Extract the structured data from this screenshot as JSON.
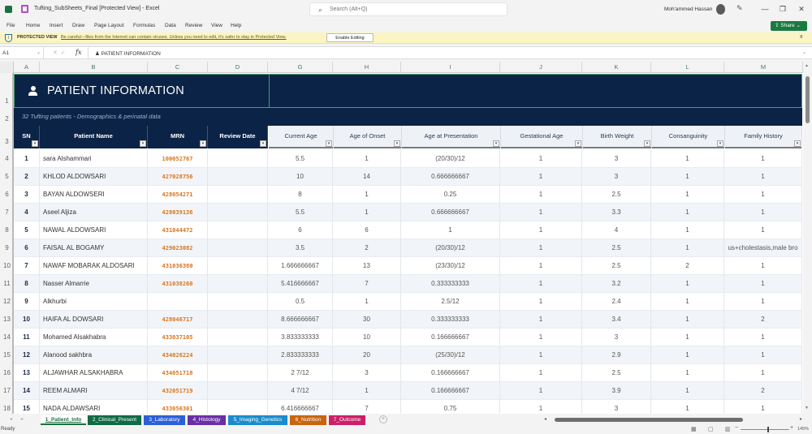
{
  "window": {
    "title": "Tufting_SubSheets_Final  [Protected View]  -  Excel",
    "search_placeholder": "Search (Alt+Q)",
    "user_name": "Moh'ammed Hassan",
    "minimize": "—",
    "restore": "❐",
    "close": "✕"
  },
  "menu": {
    "items": [
      "File",
      "Home",
      "Insert",
      "Draw",
      "Page Layout",
      "Formulas",
      "Data",
      "Review",
      "View",
      "Help"
    ],
    "share_label": "Share"
  },
  "protected_view": {
    "label": "PROTECTED VIEW",
    "message": "Be careful—files from the Internet can contain viruses. Unless you need to edit, it's safer to stay in Protected View.",
    "enable_button": "Enable Editing",
    "close": "x"
  },
  "formula_bar": {
    "cell_ref": "A1",
    "fx": "fx",
    "content": "PATIENT INFORMATION"
  },
  "columns": [
    "A",
    "B",
    "C",
    "D",
    "G",
    "H",
    "I",
    "J",
    "K",
    "L",
    "M"
  ],
  "row_numbers": [
    "1",
    "2",
    "3",
    "4",
    "5",
    "6",
    "7",
    "8",
    "9",
    "10",
    "11",
    "12",
    "13",
    "14",
    "15",
    "16",
    "17",
    "18"
  ],
  "sheet": {
    "title": "PATIENT INFORMATION",
    "subtitle": "32 Tufting patients  -  Demographics & perinatal data",
    "headers": [
      "SN",
      "Patient Name",
      "MRN",
      "Review Date",
      "Current Age",
      "Age of Onset",
      "Age at Presentation",
      "Gestational Age",
      "Birth Weight",
      "Consanguinity",
      "Family History"
    ],
    "rows": [
      {
        "sn": "1",
        "name": "sara Alshammari",
        "mrn": "100052767",
        "review": "",
        "current_age": "5.5",
        "onset": "1",
        "presentation": "(20/30)/12",
        "gest": "1",
        "weight": "3",
        "consang": "1",
        "family": "1"
      },
      {
        "sn": "2",
        "name": "KHLOD ALDOWSARI",
        "mrn": "427028756",
        "review": "",
        "current_age": "10",
        "onset": "14",
        "presentation": "0.666666667",
        "gest": "1",
        "weight": "3",
        "consang": "1",
        "family": "1"
      },
      {
        "sn": "3",
        "name": "BAYAN ALDOWSERI",
        "mrn": "428054271",
        "review": "",
        "current_age": "8",
        "onset": "1",
        "presentation": "0.25",
        "gest": "1",
        "weight": "2.5",
        "consang": "1",
        "family": "1"
      },
      {
        "sn": "4",
        "name": "Aseel Aljiza",
        "mrn": "428039136",
        "review": "",
        "current_age": "5.5",
        "onset": "1",
        "presentation": "0.666666667",
        "gest": "1",
        "weight": "3.3",
        "consang": "1",
        "family": "1"
      },
      {
        "sn": "5",
        "name": "NAWAL ALDOWSARI",
        "mrn": "431044472",
        "review": "",
        "current_age": "6",
        "onset": "6",
        "presentation": "1",
        "gest": "1",
        "weight": "4",
        "consang": "1",
        "family": "1"
      },
      {
        "sn": "6",
        "name": "FAISAL AL BOGAMY",
        "mrn": "429023082",
        "review": "",
        "current_age": "3.5",
        "onset": "2",
        "presentation": "(20/30)/12",
        "gest": "1",
        "weight": "2.5",
        "consang": "1",
        "family": "us+cholestasis,male bro"
      },
      {
        "sn": "7",
        "name": "NAWAF MOBARAK ALDOSARI",
        "mrn": "431036380",
        "review": "",
        "current_age": "1.666666667",
        "onset": "13",
        "presentation": "(23/30)/12",
        "gest": "1",
        "weight": "2.5",
        "consang": "2",
        "family": "1"
      },
      {
        "sn": "8",
        "name": "Nasser Almarrie",
        "mrn": "431038260",
        "review": "",
        "current_age": "5.416666667",
        "onset": "7",
        "presentation": "0.333333333",
        "gest": "1",
        "weight": "3.2",
        "consang": "1",
        "family": "1"
      },
      {
        "sn": "9",
        "name": "Alkhurbi",
        "mrn": "",
        "review": "",
        "current_age": "0.5",
        "onset": "1",
        "presentation": "2.5/12",
        "gest": "1",
        "weight": "2.4",
        "consang": "1",
        "family": "1"
      },
      {
        "sn": "10",
        "name": "HAIFA AL DOWSARI",
        "mrn": "428046717",
        "review": "",
        "current_age": "8.666666667",
        "onset": "30",
        "presentation": "0.333333333",
        "gest": "1",
        "weight": "3.4",
        "consang": "1",
        "family": "2"
      },
      {
        "sn": "11",
        "name": "Mohamed Alsakhabra",
        "mrn": "433037105",
        "review": "",
        "current_age": "3.833333333",
        "onset": "10",
        "presentation": "0.166666667",
        "gest": "1",
        "weight": "3",
        "consang": "1",
        "family": "1"
      },
      {
        "sn": "12",
        "name": "Alanood sakhbra",
        "mrn": "434026224",
        "review": "",
        "current_age": "2.833333333",
        "onset": "20",
        "presentation": "(25/30)/12",
        "gest": "1",
        "weight": "2.9",
        "consang": "1",
        "family": "1"
      },
      {
        "sn": "13",
        "name": "ALJAWHAR ALSAKHABRA",
        "mrn": "434051718",
        "review": "",
        "current_age": "2  7/12",
        "onset": "3",
        "presentation": "0.166666667",
        "gest": "1",
        "weight": "2.5",
        "consang": "1",
        "family": "1"
      },
      {
        "sn": "14",
        "name": "REEM ALMARI",
        "mrn": "432051719",
        "review": "",
        "current_age": "4  7/12",
        "onset": "1",
        "presentation": "0.166666667",
        "gest": "1",
        "weight": "3.9",
        "consang": "1",
        "family": "2"
      },
      {
        "sn": "15",
        "name": "NADA ALDAWSARI",
        "mrn": "433056301",
        "review": "",
        "current_age": "6.416666667",
        "onset": "7",
        "presentation": "0.75",
        "gest": "1",
        "weight": "3",
        "consang": "1",
        "family": "1"
      }
    ]
  },
  "tabs": [
    {
      "label": "1_Patient_Info",
      "color": "#ffffff",
      "active": true
    },
    {
      "label": "2_Clinical_Present",
      "color": "#0f6b44"
    },
    {
      "label": "3_Laboratory",
      "color": "#2b5fd9"
    },
    {
      "label": "4_Histology",
      "color": "#6a2fa5"
    },
    {
      "label": "5_Imaging_Genetics",
      "color": "#1a8ccc"
    },
    {
      "label": "6_Nutrition",
      "color": "#c8650f"
    },
    {
      "label": "7_Outcome",
      "color": "#cc1f68"
    }
  ],
  "status": {
    "ready": "Ready",
    "zoom_level": "145%"
  }
}
